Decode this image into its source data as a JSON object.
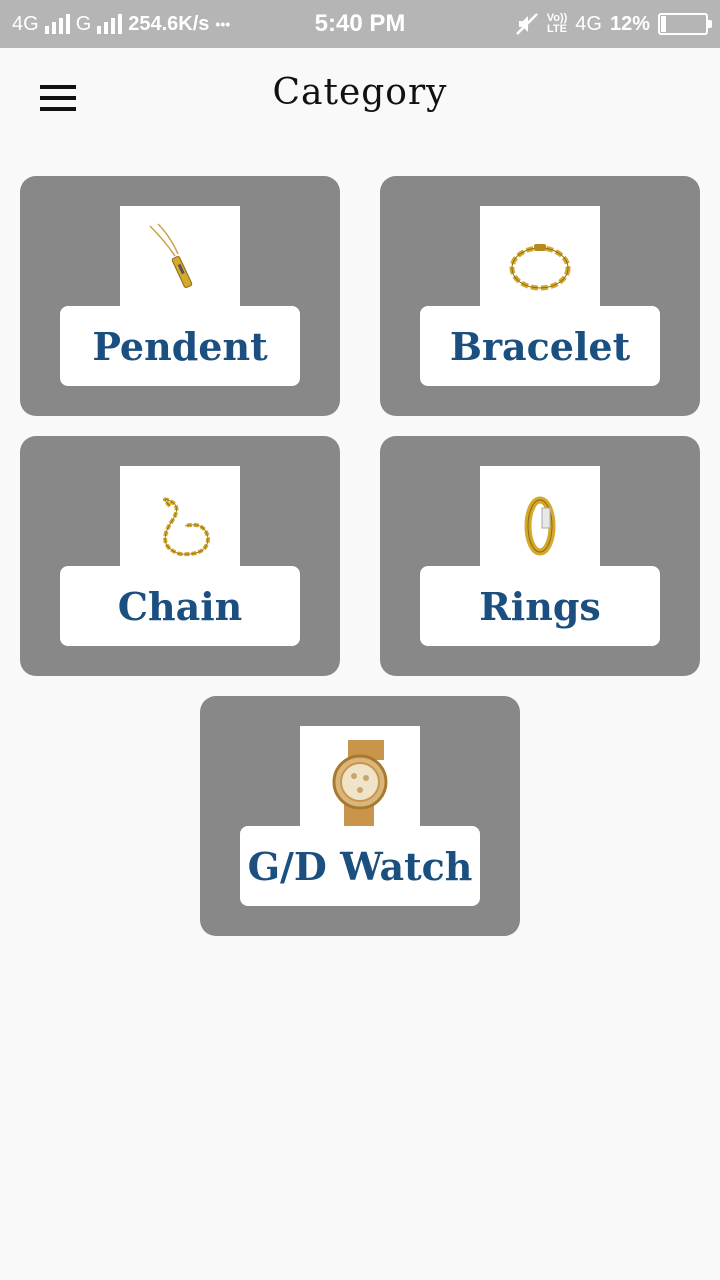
{
  "status_bar": {
    "net1": "4G",
    "net2": "G",
    "speed": "254.6K/s",
    "dots": "•••",
    "time": "5:40 PM",
    "volte_top": "Vo))",
    "volte_bottom": "LTE",
    "net3": "4G",
    "battery": "12%",
    "battery_level": 0.12
  },
  "app_bar": {
    "title": "Category",
    "menu_icon": "hamburger-menu-icon"
  },
  "categories": [
    {
      "label": "Pendent",
      "icon": "pendent-image"
    },
    {
      "label": "Bracelet",
      "icon": "bracelet-image"
    },
    {
      "label": "Chain",
      "icon": "chain-image"
    },
    {
      "label": "Rings",
      "icon": "ring-image"
    },
    {
      "label": "G/D Watch",
      "icon": "watch-image"
    }
  ],
  "colors": {
    "card_bg": "#888888",
    "label_text": "#1a4f80",
    "gold": "#d4a82a",
    "status_bar": "#b5b5b5"
  }
}
